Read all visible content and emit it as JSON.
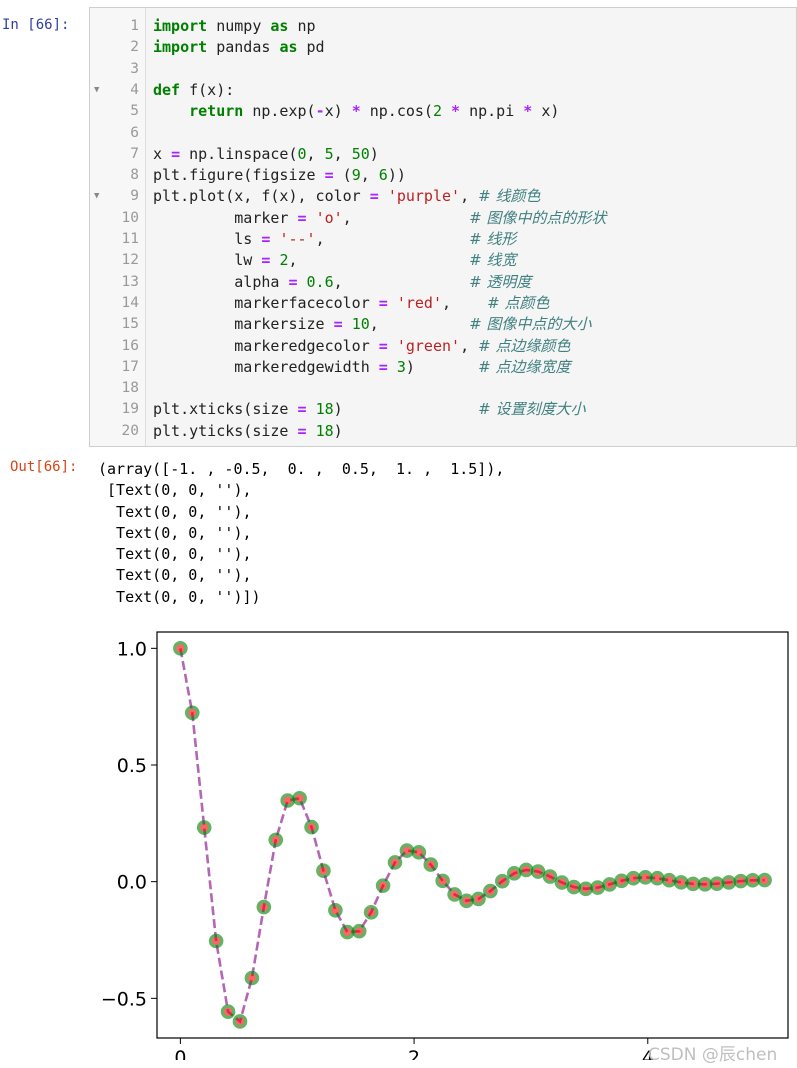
{
  "input_prompt": "In  [66]:",
  "output_prompt": "Out[66]:",
  "code": {
    "lines": [
      {
        "n": "1",
        "fold": false,
        "html": "<span class=\"kw\">import</span> numpy <span class=\"kw\">as</span> np"
      },
      {
        "n": "2",
        "fold": false,
        "html": "<span class=\"kw\">import</span> pandas <span class=\"kw\">as</span> pd"
      },
      {
        "n": "3",
        "fold": false,
        "html": ""
      },
      {
        "n": "4",
        "fold": true,
        "html": "<span class=\"kw\">def</span> f(x):"
      },
      {
        "n": "5",
        "fold": false,
        "html": "    <span class=\"kw\">return</span> np.exp(<span class=\"op\">-</span>x) <span class=\"op\">*</span> np.cos(<span class=\"num\">2</span> <span class=\"op\">*</span> np.pi <span class=\"op\">*</span> x)"
      },
      {
        "n": "6",
        "fold": false,
        "html": ""
      },
      {
        "n": "7",
        "fold": false,
        "html": "x <span class=\"op\">=</span> np.linspace(<span class=\"num\">0</span>, <span class=\"num\">5</span>, <span class=\"num\">50</span>)"
      },
      {
        "n": "8",
        "fold": false,
        "html": "plt.figure(figsize <span class=\"op\">=</span> (<span class=\"num\">9</span>, <span class=\"num\">6</span>))"
      },
      {
        "n": "9",
        "fold": true,
        "html": "plt.plot(x, f(x), color <span class=\"op\">=</span> <span class=\"str\">'purple'</span>, <span class=\"cm\"># 线颜色</span>"
      },
      {
        "n": "10",
        "fold": false,
        "html": "         marker <span class=\"op\">=</span> <span class=\"str\">'o'</span>,             <span class=\"cm\"># 图像中的点的形状</span>"
      },
      {
        "n": "11",
        "fold": false,
        "html": "         ls <span class=\"op\">=</span> <span class=\"str\">'--'</span>,                <span class=\"cm\"># 线形</span>"
      },
      {
        "n": "12",
        "fold": false,
        "html": "         lw <span class=\"op\">=</span> <span class=\"num\">2</span>,                   <span class=\"cm\"># 线宽</span>"
      },
      {
        "n": "13",
        "fold": false,
        "html": "         alpha <span class=\"op\">=</span> <span class=\"num\">0.6</span>,              <span class=\"cm\"># 透明度</span>"
      },
      {
        "n": "14",
        "fold": false,
        "html": "         markerfacecolor <span class=\"op\">=</span> <span class=\"str\">'red'</span>,    <span class=\"cm\"># 点颜色</span>"
      },
      {
        "n": "15",
        "fold": false,
        "html": "         markersize <span class=\"op\">=</span> <span class=\"num\">10</span>,          <span class=\"cm\"># 图像中点的大小</span>"
      },
      {
        "n": "16",
        "fold": false,
        "html": "         markeredgecolor <span class=\"op\">=</span> <span class=\"str\">'green'</span>, <span class=\"cm\"># 点边缘颜色</span>"
      },
      {
        "n": "17",
        "fold": false,
        "html": "         markeredgewidth <span class=\"op\">=</span> <span class=\"num\">3</span>)       <span class=\"cm\"># 点边缘宽度</span>"
      },
      {
        "n": "18",
        "fold": false,
        "html": ""
      },
      {
        "n": "19",
        "fold": false,
        "html": "plt.xticks(size <span class=\"op\">=</span> <span class=\"num\">18</span>)               <span class=\"cm\"># 设置刻度大小</span>"
      },
      {
        "n": "20",
        "fold": false,
        "html": "plt.yticks(size <span class=\"op\">=</span> <span class=\"num\">18</span>)"
      }
    ]
  },
  "output_lines": [
    "(array([-1. , -0.5,  0. ,  0.5,  1. ,  1.5]),",
    " [Text(0, 0, ''),",
    "  Text(0, 0, ''),",
    "  Text(0, 0, ''),",
    "  Text(0, 0, ''),",
    "  Text(0, 0, ''),",
    "  Text(0, 0, '')])"
  ],
  "watermark": "CSDN @辰chen",
  "chart_data": {
    "type": "line",
    "function": "exp(-x) * cos(2*pi*x)",
    "x_start": 0,
    "x_end": 5,
    "n_points": 50,
    "xlim": [
      -0.2,
      5.2
    ],
    "ylim": [
      -0.67,
      1.07
    ],
    "xticks": [
      "0",
      "2",
      "4"
    ],
    "xtick_values": [
      0,
      2,
      4
    ],
    "yticks": [
      "1.0",
      "0.5",
      "0.0",
      "−0.5"
    ],
    "ytick_values": [
      1.0,
      0.5,
      0.0,
      -0.5
    ],
    "line_color": "#800080",
    "line_style": "dashed",
    "alpha": 0.6,
    "marker_face_color": "#ff0000",
    "marker_edge_color": "#008000"
  }
}
